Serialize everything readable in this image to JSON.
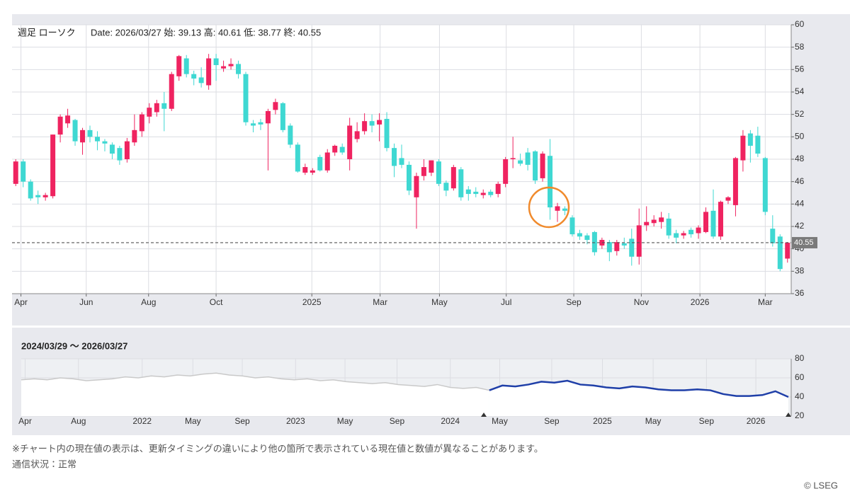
{
  "chart_data": [
    {
      "type": "candlestick",
      "title": "週足 ローソク",
      "subtitle": "Date: 2026/03/27 始: 39.13 高: 40.61 低: 38.77 終: 40.55",
      "open": [
        45.8,
        47.8,
        46,
        44.8,
        44.6,
        44.7,
        50.2,
        51.2,
        51.5,
        49.5,
        50.6,
        50,
        49.6,
        49.3,
        49,
        48,
        49.5,
        50.5,
        51.8,
        52.2,
        53,
        52.5,
        55.4,
        57,
        55.6,
        55.3,
        54.6,
        57,
        56.1,
        56.3,
        56.5,
        55.6,
        51.2,
        51.3,
        51.2,
        52.4,
        53,
        51,
        49.3,
        46.8,
        46.8,
        48.2,
        47,
        48.6,
        49.1,
        48,
        49.8,
        50.5,
        51.4,
        51.1,
        51.6,
        49,
        48.1,
        47.5,
        44.6,
        46.5,
        46.8,
        47.8,
        45.9,
        45.4,
        47.1,
        45.3,
        45.1,
        44.8,
        45.1,
        44.9,
        45.8,
        48,
        47.9,
        48.6,
        48.7,
        46.3,
        48.3,
        43.4,
        43.6,
        42.8,
        41.4,
        41.2,
        41.5,
        40.3,
        40.6,
        39.8,
        40.5,
        40.9,
        39.3,
        42.1,
        42.3,
        42.4,
        42.7,
        41.4,
        41.2,
        41.7,
        41.4,
        41.5,
        43.4,
        41.1,
        44.3,
        43.9,
        47.9,
        50.3,
        50.1,
        48.1,
        41.8,
        41.1,
        39.13
      ],
      "high": [
        48,
        48,
        46.2,
        45.2,
        45,
        50.2,
        52,
        52.5,
        51.6,
        50.8,
        51,
        50.5,
        49.8,
        49.5,
        49.2,
        49.9,
        52,
        52.2,
        53,
        53.3,
        54,
        55.8,
        57.3,
        57.3,
        55.9,
        56.2,
        57.4,
        57.4,
        56.8,
        57,
        56.8,
        55.8,
        51.5,
        51.6,
        52.5,
        53.4,
        53.1,
        51.2,
        49.5,
        47.6,
        47.2,
        48.4,
        48.9,
        49.3,
        49.4,
        51.7,
        51.3,
        52.1,
        52,
        52.1,
        52.2,
        49.4,
        49.3,
        47.8,
        46.8,
        48,
        47.9,
        48,
        46.1,
        47.5,
        47.3,
        45.6,
        45.5,
        45.3,
        45.3,
        46,
        48.2,
        50,
        48.5,
        49,
        48.8,
        48.7,
        49.8,
        44.1,
        43.8,
        43,
        41.7,
        41.4,
        41.6,
        41,
        40.8,
        40.8,
        41,
        41.8,
        43.6,
        43.8,
        43,
        43.3,
        43.2,
        41.7,
        41.6,
        41.9,
        42.1,
        43.7,
        45.3,
        44.3,
        44.7,
        48.2,
        50.6,
        50.6,
        50.9,
        48.2,
        43,
        41.3,
        40.61
      ],
      "low": [
        45.6,
        45.5,
        44.3,
        44,
        44.3,
        44.5,
        49.5,
        50.8,
        49.2,
        48.4,
        49.5,
        48.8,
        48.7,
        48,
        47.5,
        47.7,
        49.2,
        50,
        51.2,
        51.8,
        50.5,
        52.3,
        55,
        55.3,
        54.6,
        54.4,
        54.2,
        55,
        55.8,
        56,
        55.2,
        51,
        50.4,
        50.6,
        47,
        52,
        50.4,
        49,
        46.8,
        46.6,
        46.6,
        46.9,
        46.8,
        48.3,
        48.4,
        47,
        49.5,
        50.2,
        50.4,
        49.6,
        48.7,
        46.4,
        47.2,
        44.8,
        41.8,
        46.1,
        46.5,
        45.6,
        44.7,
        45.2,
        44.3,
        44.3,
        44.6,
        44.5,
        44.6,
        44.6,
        45.5,
        47.2,
        47.4,
        47,
        45.8,
        46,
        42.6,
        42.4,
        43,
        41.1,
        40.8,
        40.4,
        39.4,
        40,
        38.9,
        39.4,
        40,
        38.5,
        38.6,
        41.6,
        42,
        41.8,
        40.9,
        40.5,
        40.9,
        41,
        40.9,
        41.4,
        40.9,
        40.8,
        44,
        42.9,
        46.9,
        47.7,
        48.2,
        43,
        40.2,
        38,
        38.77
      ],
      "close": [
        47.8,
        46,
        44.5,
        44.6,
        44.8,
        50.2,
        51.8,
        51.9,
        49.6,
        50.6,
        50,
        49.6,
        49.4,
        48.5,
        47.9,
        49.6,
        50.6,
        52,
        52.6,
        53,
        52.5,
        55.6,
        57.2,
        55.6,
        55.2,
        54.8,
        57,
        56.4,
        56.3,
        56.5,
        55.6,
        51.3,
        51,
        51.1,
        52.3,
        53.1,
        50.6,
        49.3,
        46.9,
        47.3,
        47,
        47,
        48.6,
        49.2,
        48.6,
        51,
        50.5,
        51.4,
        51,
        51.5,
        49,
        47.4,
        47.5,
        45.2,
        46.5,
        47.3,
        47.9,
        45.8,
        45.2,
        47.3,
        44.6,
        44.9,
        44.9,
        45,
        44.8,
        45.8,
        48,
        48.1,
        47.6,
        47.5,
        46.1,
        48.5,
        43.7,
        43.8,
        43.4,
        41.3,
        41.1,
        40.8,
        39.7,
        40.8,
        39.7,
        40.6,
        40.3,
        39.3,
        42.1,
        42.4,
        42.6,
        42.8,
        41.2,
        41,
        41.4,
        41.3,
        41.9,
        43.3,
        41.1,
        44.2,
        44.6,
        48.1,
        50.1,
        49.2,
        48.5,
        43.3,
        40.5,
        38.2,
        40.55
      ],
      "up_color": "#ef2360",
      "down_color": "#3fd8d2",
      "ylim": [
        36,
        60
      ],
      "yticks": [
        36,
        38,
        40,
        42,
        44,
        46,
        48,
        50,
        52,
        54,
        56,
        58,
        60
      ],
      "xticks": [
        {
          "value": 0.7,
          "label": "Apr"
        },
        {
          "value": 9.5,
          "label": "Jun"
        },
        {
          "value": 17.9,
          "label": "Aug"
        },
        {
          "value": 27,
          "label": "Oct"
        },
        {
          "value": 39.9,
          "label": "2025"
        },
        {
          "value": 49.1,
          "label": "Mar"
        },
        {
          "value": 57.1,
          "label": "May"
        },
        {
          "value": 66.1,
          "label": "Jul"
        },
        {
          "value": 75.2,
          "label": "Sep"
        },
        {
          "value": 84.3,
          "label": "Nov"
        },
        {
          "value": 92.2,
          "label": "2026"
        },
        {
          "value": 101,
          "label": "Mar"
        }
      ],
      "grid": true,
      "last_price": 40.55
    },
    {
      "type": "line",
      "title": "2024/03/29 〜 2026/03/27",
      "series": [
        {
          "color": "#c9c9c9",
          "values": [
            58,
            59,
            58,
            60,
            59,
            57,
            58,
            59,
            61,
            60,
            62,
            61,
            63,
            62,
            64,
            65,
            63,
            62,
            60,
            61,
            59,
            58,
            59,
            57,
            58,
            56,
            55,
            54,
            55,
            53,
            52,
            51,
            53,
            50,
            49,
            50,
            47,
            null,
            null,
            null,
            null,
            null,
            null,
            null,
            null,
            null,
            null,
            null,
            null,
            null,
            null,
            null,
            null,
            null,
            null,
            null,
            null,
            null,
            null,
            null
          ]
        },
        {
          "color": "#1f3fa8",
          "values": [
            null,
            null,
            null,
            null,
            null,
            null,
            null,
            null,
            null,
            null,
            null,
            null,
            null,
            null,
            null,
            null,
            null,
            null,
            null,
            null,
            null,
            null,
            null,
            null,
            null,
            null,
            null,
            null,
            null,
            null,
            null,
            null,
            null,
            null,
            null,
            null,
            47,
            52,
            51,
            53,
            56,
            55,
            57,
            53,
            52,
            50,
            49,
            51,
            50,
            48,
            47,
            47,
            48,
            47,
            43,
            41,
            41,
            42,
            46,
            40
          ]
        }
      ],
      "ylim": [
        20,
        80
      ],
      "yticks": [
        20,
        40,
        60,
        80
      ],
      "xticks": [
        {
          "value": 0.3,
          "label": "Apr"
        },
        {
          "value": 4.4,
          "label": "Aug"
        },
        {
          "value": 9.3,
          "label": "2022"
        },
        {
          "value": 13.2,
          "label": "May"
        },
        {
          "value": 17,
          "label": "Sep"
        },
        {
          "value": 21.1,
          "label": "2023"
        },
        {
          "value": 24.9,
          "label": "May"
        },
        {
          "value": 28.9,
          "label": "Sep"
        },
        {
          "value": 33,
          "label": "2024"
        },
        {
          "value": 36.8,
          "label": "May"
        },
        {
          "value": 40.8,
          "label": "Sep"
        },
        {
          "value": 44.7,
          "label": "2025"
        },
        {
          "value": 48.6,
          "label": "May"
        },
        {
          "value": 52.7,
          "label": "Sep"
        },
        {
          "value": 56.5,
          "label": "2026"
        }
      ],
      "grid": true
    }
  ],
  "footer": {
    "notes": [
      "※チャート内の現在値の表示は、更新タイミングの違いにより他の箇所で表示されている現在値と数値が異なることがあります。",
      "通信状況：正常"
    ],
    "credit": "© LSEG"
  }
}
